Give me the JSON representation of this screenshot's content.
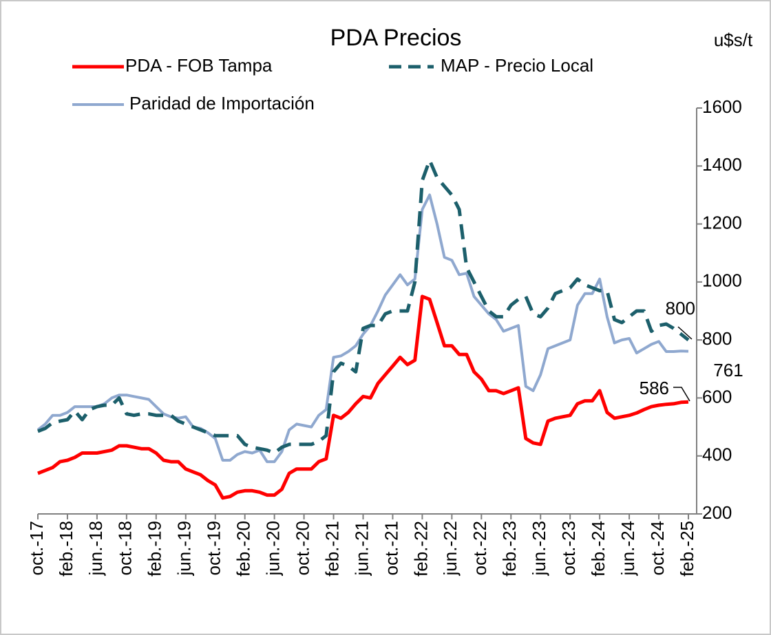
{
  "chart_data": {
    "type": "line",
    "title": "PDA Precios",
    "y_axis_label": "u$s/t",
    "categories": [
      "oct.-17",
      null,
      null,
      null,
      "feb.-18",
      null,
      null,
      null,
      "jun.-18",
      null,
      null,
      null,
      "oct.-18",
      null,
      null,
      null,
      "feb.-19",
      null,
      null,
      null,
      "jun.-19",
      null,
      null,
      null,
      "oct.-19",
      null,
      null,
      null,
      "feb.-20",
      null,
      null,
      null,
      "jun.-20",
      null,
      null,
      null,
      "oct.-20",
      null,
      null,
      null,
      "feb.-21",
      null,
      null,
      null,
      "jun.-21",
      null,
      null,
      null,
      "oct.-21",
      null,
      null,
      null,
      "feb.-22",
      null,
      null,
      null,
      "jun.-22",
      null,
      null,
      null,
      "oct.-22",
      null,
      null,
      null,
      "feb.-23",
      null,
      null,
      null,
      "jun.-23",
      null,
      null,
      null,
      "oct.-23",
      null,
      null,
      null,
      "feb.-24",
      null,
      null,
      null,
      "jun.-24",
      null,
      null,
      null,
      "oct.-24",
      null,
      null,
      null,
      "feb.-25"
    ],
    "series": [
      {
        "name": "PDA - FOB Tampa",
        "color": "#ff0000",
        "dashed": false,
        "values": [
          340,
          350,
          360,
          380,
          385,
          395,
          410,
          410,
          410,
          415,
          420,
          435,
          435,
          430,
          425,
          425,
          410,
          385,
          380,
          380,
          355,
          345,
          335,
          315,
          300,
          255,
          260,
          275,
          280,
          280,
          275,
          265,
          265,
          285,
          340,
          355,
          355,
          355,
          380,
          390,
          540,
          530,
          550,
          580,
          605,
          600,
          650,
          680,
          710,
          740,
          715,
          730,
          950,
          940,
          860,
          780,
          780,
          750,
          750,
          690,
          665,
          625,
          625,
          615,
          625,
          635,
          460,
          445,
          440,
          520,
          530,
          535,
          540,
          580,
          590,
          590,
          625,
          550,
          530,
          535,
          540,
          548,
          560,
          570,
          575,
          578,
          580,
          585,
          586
        ]
      },
      {
        "name": "MAP - Precio Local",
        "color": "#1c5f6b",
        "dashed": true,
        "values": [
          485,
          495,
          515,
          520,
          525,
          555,
          525,
          560,
          570,
          575,
          575,
          600,
          545,
          540,
          545,
          545,
          540,
          540,
          540,
          520,
          510,
          500,
          490,
          480,
          470,
          470,
          470,
          470,
          440,
          430,
          425,
          420,
          410,
          430,
          440,
          440,
          440,
          440,
          450,
          470,
          690,
          720,
          710,
          690,
          840,
          850,
          850,
          890,
          900,
          900,
          900,
          1000,
          1350,
          1420,
          1360,
          1330,
          1300,
          1250,
          1050,
          1000,
          950,
          900,
          880,
          880,
          920,
          940,
          950,
          890,
          880,
          910,
          960,
          970,
          980,
          1010,
          990,
          980,
          970,
          970,
          870,
          860,
          880,
          900,
          900,
          830,
          850,
          855,
          840,
          820,
          800
        ]
      },
      {
        "name": "Paridad de Importación",
        "color": "#8fa8cf",
        "dashed": false,
        "values": [
          490,
          510,
          540,
          540,
          550,
          570,
          570,
          570,
          570,
          580,
          600,
          610,
          610,
          605,
          600,
          595,
          570,
          545,
          535,
          530,
          535,
          500,
          495,
          480,
          460,
          385,
          385,
          405,
          415,
          410,
          420,
          380,
          380,
          415,
          490,
          510,
          505,
          500,
          540,
          560,
          740,
          745,
          760,
          780,
          820,
          850,
          900,
          955,
          990,
          1025,
          990,
          1010,
          1250,
          1300,
          1200,
          1085,
          1075,
          1025,
          1030,
          950,
          920,
          890,
          870,
          830,
          840,
          850,
          640,
          625,
          680,
          770,
          780,
          790,
          800,
          920,
          960,
          960,
          1010,
          880,
          790,
          800,
          805,
          755,
          770,
          785,
          795,
          760,
          760,
          762,
          761
        ]
      }
    ],
    "ylim": [
      200,
      1600
    ],
    "yticks": [
      200,
      400,
      600,
      800,
      1000,
      1200,
      1400,
      1600
    ],
    "y_axis_side": "right",
    "grid": false
  }
}
